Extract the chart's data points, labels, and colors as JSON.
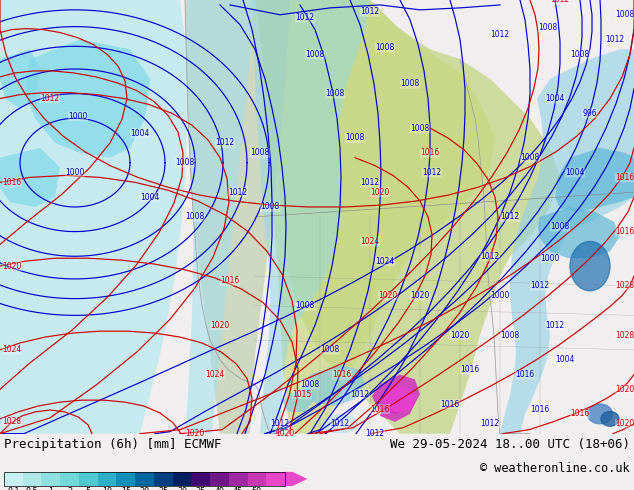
{
  "title_left": "Precipitation (6h) [mm] ECMWF",
  "title_right": "We 29-05-2024 18..00 UTC (18+06)",
  "copyright": "© weatheronline.co.uk",
  "colorbar_labels": [
    "0.1",
    "0.5",
    "1",
    "2",
    "5",
    "10",
    "15",
    "20",
    "25",
    "30",
    "35",
    "40",
    "45",
    "50"
  ],
  "colorbar_colors": [
    "#c8f0f0",
    "#b0e8e8",
    "#90e0e0",
    "#70d8d8",
    "#50c8d0",
    "#30b0c8",
    "#1090b8",
    "#0068a0",
    "#004080",
    "#002060",
    "#400870",
    "#701888",
    "#a028a0",
    "#c838b0",
    "#e848c8"
  ],
  "bg_color": "#f0eeee",
  "map_bg": "#f0eeee",
  "land_color": "#d8d8d8",
  "ocean_color": "#f0eeee"
}
